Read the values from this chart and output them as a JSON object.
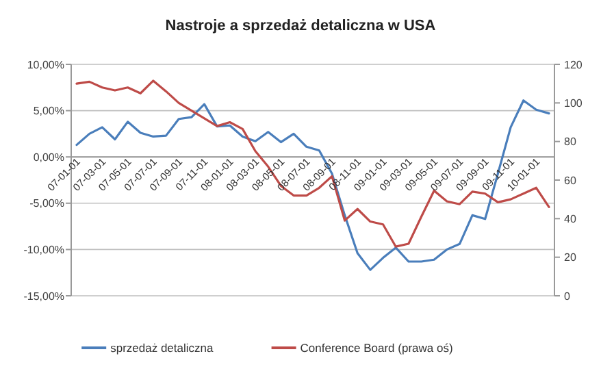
{
  "chart_data": {
    "type": "line",
    "title": "Nastroje a sprzedaż detaliczna w USA",
    "categories": [
      "07-01-01",
      null,
      "07-03-01",
      null,
      "07-05-01",
      null,
      "07-07-01",
      null,
      "07-09-01",
      null,
      "07-11-01",
      null,
      "08-01-01",
      null,
      "08-03-01",
      null,
      "08-05-01",
      null,
      "08-07-01",
      null,
      "08-09-01",
      null,
      "08-11-01",
      null,
      "09-01-01",
      null,
      "09-03-01",
      null,
      "09-05-01",
      null,
      "09-07-01",
      null,
      "09-09-01",
      null,
      "09-11-01",
      null,
      "10-01-01",
      null
    ],
    "series": [
      {
        "name": "sprzedaż detaliczna",
        "color": "#4a7ebb",
        "values": [
          1.3,
          2.5,
          3.2,
          1.9,
          3.8,
          2.6,
          2.2,
          2.3,
          4.1,
          4.3,
          5.7,
          3.3,
          3.4,
          2.2,
          1.7,
          2.7,
          1.6,
          2.5,
          1.1,
          0.7,
          -1.8,
          -6.3,
          -10.4,
          -12.2,
          -10.9,
          -9.8,
          -11.3,
          -11.3,
          -11.1,
          -10.0,
          -9.4,
          -6.3,
          -6.7,
          -1.8,
          3.2,
          6.1,
          5.1,
          4.7
        ]
      },
      {
        "name": "Conference Board (prawa oś)",
        "color": "#be4b48",
        "axis": "y2",
        "values": [
          110,
          111,
          108,
          106.5,
          108,
          105,
          111.5,
          106,
          100,
          96,
          92,
          88,
          90,
          86.5,
          75,
          67,
          57,
          52,
          52,
          56,
          62,
          39,
          45,
          38.5,
          37,
          25.5,
          27,
          41,
          54.5,
          49,
          47.5,
          54,
          53,
          48.5,
          50,
          53,
          56,
          46
        ]
      }
    ],
    "ylim": [
      -15,
      10
    ],
    "yticks": [
      {
        "value": 10,
        "label": "10,00%"
      },
      {
        "value": 5,
        "label": "5,00%"
      },
      {
        "value": 0,
        "label": "0,00%"
      },
      {
        "value": -5,
        "label": "-5,00%"
      },
      {
        "value": -10,
        "label": "-10,00%"
      },
      {
        "value": -15,
        "label": "-15,00%"
      }
    ],
    "y2lim": [
      0,
      120
    ],
    "y2ticks": [
      0,
      20,
      40,
      60,
      80,
      100,
      120
    ],
    "grid": "y",
    "legend": "bottom",
    "marker": "none",
    "line_style": "solid"
  }
}
